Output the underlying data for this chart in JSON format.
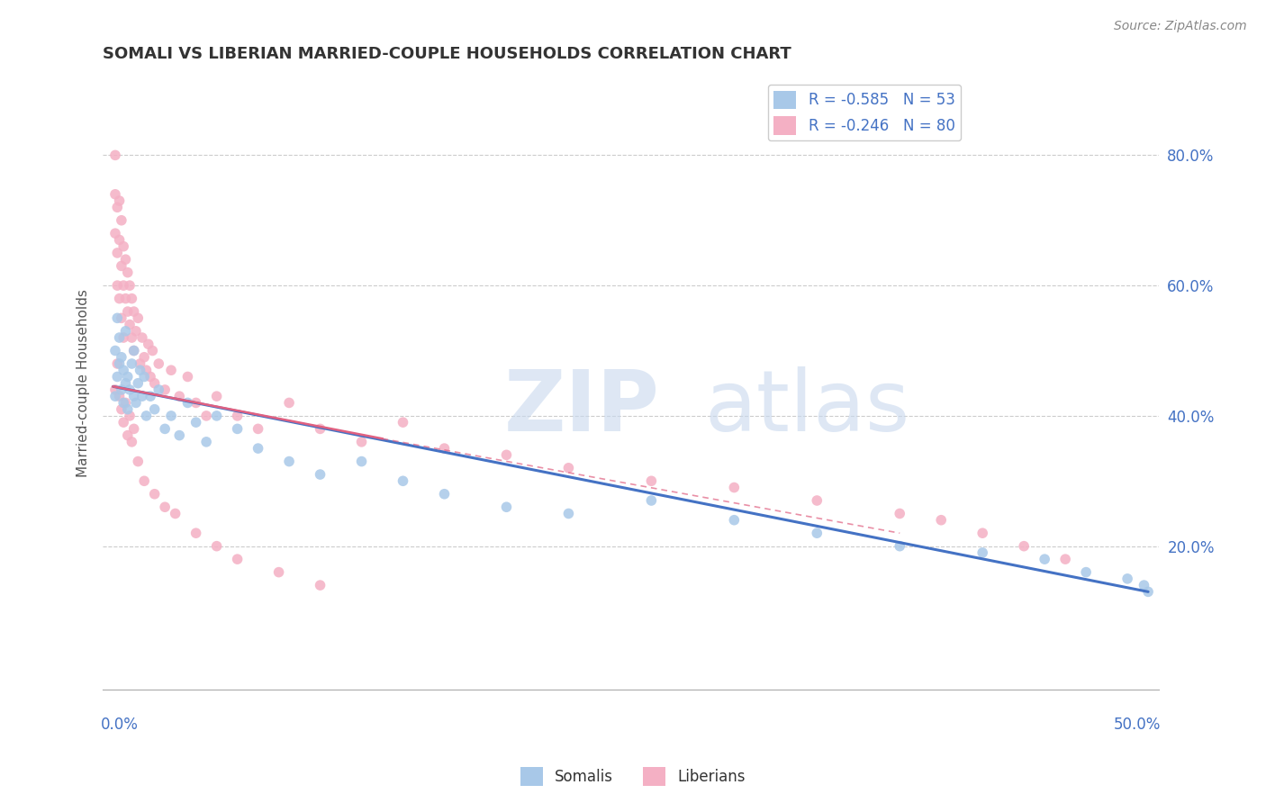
{
  "title": "SOMALI VS LIBERIAN MARRIED-COUPLE HOUSEHOLDS CORRELATION CHART",
  "source": "Source: ZipAtlas.com",
  "ylabel": "Married-couple Households",
  "y_ticks": [
    0.0,
    0.2,
    0.4,
    0.6,
    0.8
  ],
  "y_tick_labels": [
    "",
    "20.0%",
    "40.0%",
    "60.0%",
    "80.0%"
  ],
  "somali_R": -0.585,
  "somali_N": 53,
  "liberian_R": -0.246,
  "liberian_N": 80,
  "somali_color": "#a8c8e8",
  "liberian_color": "#f4b0c4",
  "somali_line_color": "#4472c4",
  "liberian_line_color": "#e06080",
  "background_color": "#ffffff",
  "grid_color": "#cccccc",
  "xlim_min": -0.005,
  "xlim_max": 0.505,
  "ylim_min": -0.02,
  "ylim_max": 0.92,
  "somali_x": [
    0.001,
    0.001,
    0.002,
    0.002,
    0.003,
    0.003,
    0.004,
    0.004,
    0.005,
    0.005,
    0.006,
    0.006,
    0.007,
    0.007,
    0.008,
    0.009,
    0.01,
    0.01,
    0.011,
    0.012,
    0.013,
    0.014,
    0.015,
    0.016,
    0.018,
    0.02,
    0.022,
    0.025,
    0.028,
    0.032,
    0.036,
    0.04,
    0.045,
    0.05,
    0.06,
    0.07,
    0.085,
    0.1,
    0.12,
    0.14,
    0.16,
    0.19,
    0.22,
    0.26,
    0.3,
    0.34,
    0.38,
    0.42,
    0.45,
    0.47,
    0.49,
    0.498,
    0.5
  ],
  "somali_y": [
    0.43,
    0.5,
    0.46,
    0.55,
    0.48,
    0.52,
    0.44,
    0.49,
    0.47,
    0.42,
    0.45,
    0.53,
    0.46,
    0.41,
    0.44,
    0.48,
    0.43,
    0.5,
    0.42,
    0.45,
    0.47,
    0.43,
    0.46,
    0.4,
    0.43,
    0.41,
    0.44,
    0.38,
    0.4,
    0.37,
    0.42,
    0.39,
    0.36,
    0.4,
    0.38,
    0.35,
    0.33,
    0.31,
    0.33,
    0.3,
    0.28,
    0.26,
    0.25,
    0.27,
    0.24,
    0.22,
    0.2,
    0.19,
    0.18,
    0.16,
    0.15,
    0.14,
    0.13
  ],
  "liberian_x": [
    0.001,
    0.001,
    0.001,
    0.002,
    0.002,
    0.002,
    0.003,
    0.003,
    0.003,
    0.004,
    0.004,
    0.004,
    0.005,
    0.005,
    0.005,
    0.006,
    0.006,
    0.007,
    0.007,
    0.008,
    0.008,
    0.009,
    0.009,
    0.01,
    0.01,
    0.011,
    0.012,
    0.013,
    0.014,
    0.015,
    0.016,
    0.017,
    0.018,
    0.019,
    0.02,
    0.022,
    0.025,
    0.028,
    0.032,
    0.036,
    0.04,
    0.045,
    0.05,
    0.06,
    0.07,
    0.085,
    0.1,
    0.12,
    0.14,
    0.16,
    0.19,
    0.22,
    0.26,
    0.3,
    0.34,
    0.38,
    0.4,
    0.42,
    0.44,
    0.46,
    0.001,
    0.002,
    0.003,
    0.004,
    0.005,
    0.006,
    0.007,
    0.008,
    0.009,
    0.01,
    0.012,
    0.015,
    0.02,
    0.025,
    0.03,
    0.04,
    0.05,
    0.06,
    0.08,
    0.1
  ],
  "liberian_y": [
    0.68,
    0.74,
    0.8,
    0.65,
    0.72,
    0.6,
    0.67,
    0.73,
    0.58,
    0.63,
    0.7,
    0.55,
    0.6,
    0.66,
    0.52,
    0.58,
    0.64,
    0.56,
    0.62,
    0.54,
    0.6,
    0.52,
    0.58,
    0.5,
    0.56,
    0.53,
    0.55,
    0.48,
    0.52,
    0.49,
    0.47,
    0.51,
    0.46,
    0.5,
    0.45,
    0.48,
    0.44,
    0.47,
    0.43,
    0.46,
    0.42,
    0.4,
    0.43,
    0.4,
    0.38,
    0.42,
    0.38,
    0.36,
    0.39,
    0.35,
    0.34,
    0.32,
    0.3,
    0.29,
    0.27,
    0.25,
    0.24,
    0.22,
    0.2,
    0.18,
    0.44,
    0.48,
    0.43,
    0.41,
    0.39,
    0.42,
    0.37,
    0.4,
    0.36,
    0.38,
    0.33,
    0.3,
    0.28,
    0.26,
    0.25,
    0.22,
    0.2,
    0.18,
    0.16,
    0.14
  ]
}
